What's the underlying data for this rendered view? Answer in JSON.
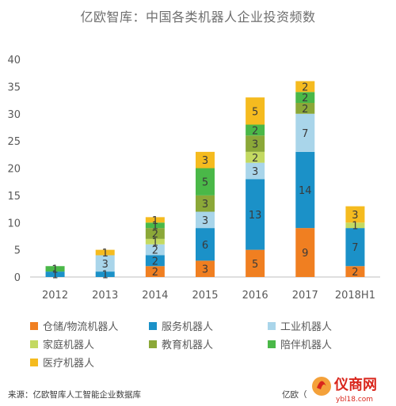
{
  "title": "亿欧智库：中国各类机器人企业投资频数",
  "chart_data": {
    "type": "bar",
    "stacked": true,
    "categories": [
      "2012",
      "2013",
      "2014",
      "2015",
      "2016",
      "2017",
      "2018H1"
    ],
    "ylim": [
      0,
      40
    ],
    "yticks": [
      0,
      5,
      10,
      15,
      20,
      25,
      30,
      35,
      40
    ],
    "legend_position": "bottom",
    "grid": false,
    "series": [
      {
        "name": "仓储/物流机器人",
        "color": "#F07F21",
        "values": [
          0,
          0,
          2,
          3,
          5,
          9,
          2
        ]
      },
      {
        "name": "服务机器人",
        "color": "#1B91C8",
        "values": [
          1,
          1,
          2,
          6,
          13,
          14,
          7
        ]
      },
      {
        "name": "工业机器人",
        "color": "#A9D5EA",
        "values": [
          0,
          3,
          2,
          3,
          3,
          7,
          0
        ]
      },
      {
        "name": "家庭机器人",
        "color": "#C3D961",
        "values": [
          0,
          0,
          1,
          0,
          2,
          0,
          1
        ]
      },
      {
        "name": "教育机器人",
        "color": "#8BA838",
        "values": [
          0,
          0,
          2,
          3,
          3,
          2,
          0
        ]
      },
      {
        "name": "陪伴机器人",
        "color": "#4AB848",
        "values": [
          1,
          0,
          1,
          5,
          2,
          2,
          0
        ]
      },
      {
        "name": "医疗机器人",
        "color": "#F5BB1F",
        "values": [
          0,
          1,
          1,
          3,
          5,
          2,
          3
        ]
      }
    ]
  },
  "footer": {
    "source": "来源：亿欧智库人工智能企业数据库",
    "brand": "亿欧（",
    "watermark_text": "仪商网",
    "watermark_url": "ybl18.com"
  }
}
